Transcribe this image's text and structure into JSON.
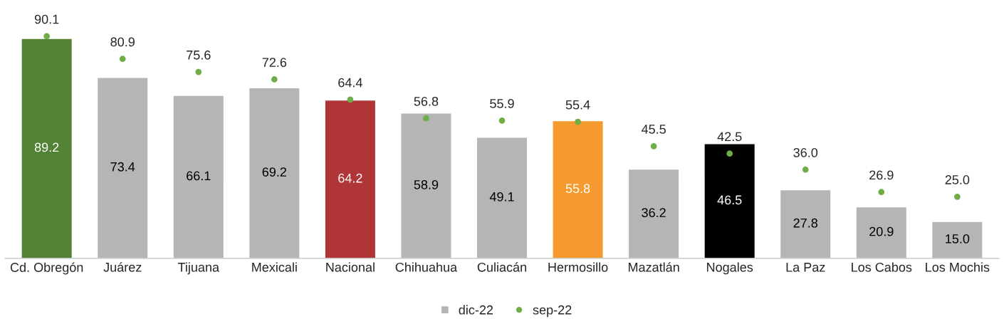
{
  "chart_data": {
    "type": "bar",
    "categories": [
      "Cd. Obregón",
      "Juárez",
      "Tijuana",
      "Mexicali",
      "Nacional",
      "Chihuahua",
      "Culiacán",
      "Hermosillo",
      "Mazatlán",
      "Nogales",
      "La Paz",
      "Los Cabos",
      "Los Mochis"
    ],
    "series": [
      {
        "name": "dic-22",
        "color": "#b3b5b6",
        "colors": [
          "#548235",
          "#b3b5b6",
          "#b3b5b6",
          "#b3b5b6",
          "#b03536",
          "#b3b5b6",
          "#b3b5b6",
          "#f59a2f",
          "#b3b5b6",
          "#000000",
          "#b3b5b6",
          "#b3b5b6",
          "#b3b5b6"
        ],
        "values": [
          89.2,
          73.4,
          66.1,
          69.2,
          64.2,
          58.9,
          49.1,
          55.8,
          36.2,
          46.5,
          27.8,
          20.9,
          15.0
        ],
        "value_labels": [
          "89.2",
          "73.4",
          "66.1",
          "69.2",
          "64.2",
          "58.9",
          "49.1",
          "55.8",
          "36.2",
          "46.5",
          "27.8",
          "20.9",
          "15.0"
        ]
      },
      {
        "name": "sep-22",
        "type": "scatter",
        "color": "#70ad47",
        "values": [
          90.1,
          80.9,
          75.6,
          72.6,
          64.4,
          56.8,
          55.9,
          55.4,
          45.5,
          42.5,
          36.0,
          26.9,
          25.0
        ],
        "value_labels": [
          "90.1",
          "80.9",
          "75.6",
          "72.6",
          "64.4",
          "56.8",
          "55.9",
          "55.4",
          "45.5",
          "42.5",
          "36.0",
          "26.9",
          "25.0"
        ]
      }
    ],
    "grid": false,
    "legend": "bottom",
    "marker": "circle"
  }
}
